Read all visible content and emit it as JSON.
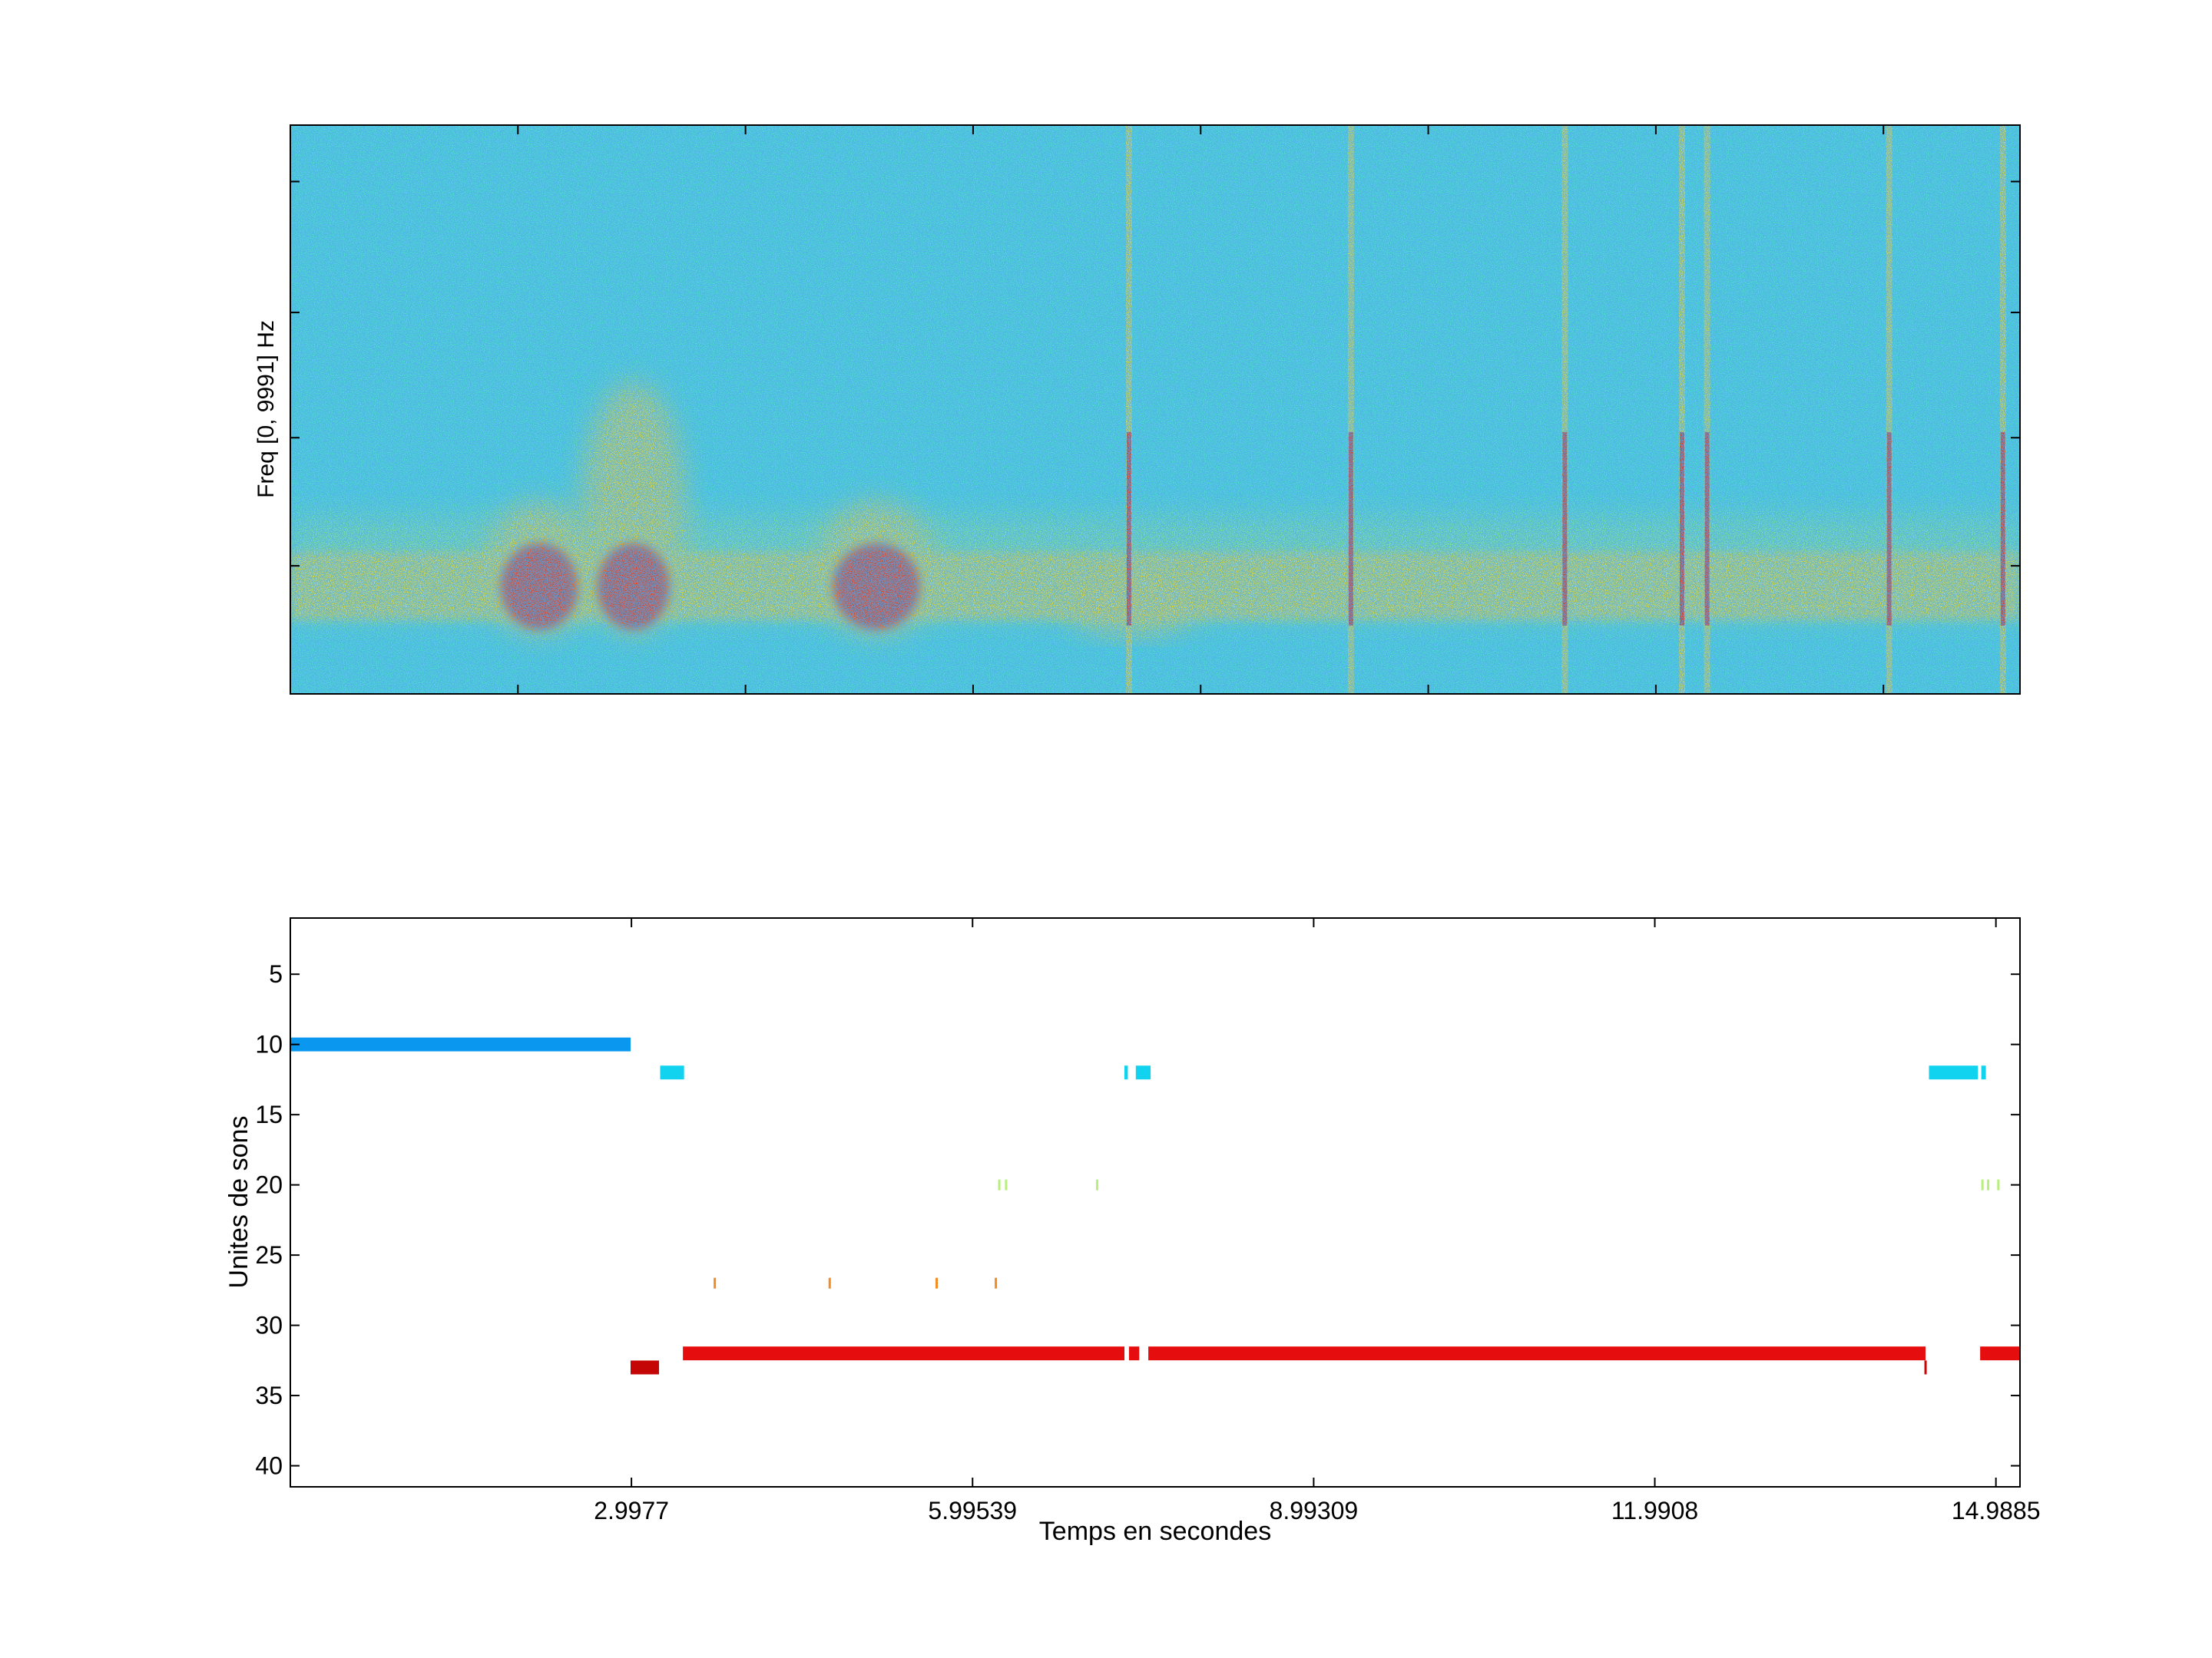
{
  "colors": {
    "background": "#ffffff",
    "axis": "#000000",
    "spec_base": "#4fe3c8",
    "spec_noise": "#2a8fe0",
    "spec_warm": "#f6e12a",
    "spec_hot": "#e51a0a",
    "unit_10": "#0a97f0",
    "unit_12": "#12d3ef",
    "unit_20": "#b8ef7c",
    "unit_27": "#f48b22",
    "unit_32": "#e50d0d",
    "unit_33": "#c40606"
  },
  "chart_data": [
    {
      "type": "heatmap",
      "title": "",
      "ylabel": "Freq [0, 9991] Hz",
      "xlabel": "",
      "xlim": [
        0,
        15.2
      ],
      "ylim": [
        0,
        9991
      ],
      "x_ticks": [
        2.0,
        4.0,
        6.0,
        8.0,
        10.0,
        12.0,
        14.0
      ],
      "y_ticks": [
        2250,
        4500,
        6700,
        9000
      ],
      "show_tick_labels": false,
      "grid": false,
      "colormap": "jet",
      "background_level": "cyan",
      "low_band_hz": [
        1300,
        2600
      ],
      "broadband_energy": [
        {
          "start": 1.78,
          "end": 2.6,
          "level": "red",
          "top_hz": 3100
        },
        {
          "start": 2.63,
          "end": 3.4,
          "level": "red",
          "top_hz": 5200
        },
        {
          "start": 4.7,
          "end": 5.6,
          "level": "red",
          "top_hz": 3100
        },
        {
          "start": 6.9,
          "end": 7.9,
          "level": "yellow",
          "top_hz": 1800
        }
      ],
      "vertical_clicks": [
        7.37,
        9.32,
        11.2,
        12.23,
        12.45,
        14.05,
        15.05
      ]
    },
    {
      "type": "scatter",
      "title": "",
      "xlabel": "Temps en secondes",
      "ylabel": "Unites de sons",
      "xlim": [
        0,
        15.2
      ],
      "ylim": [
        41.5,
        1
      ],
      "x_tick_labels": [
        "2.9977",
        "5.99539",
        "8.99309",
        "11.9908",
        "14.9885"
      ],
      "x_ticks": [
        2.9977,
        5.99539,
        8.99309,
        11.9908,
        14.9885
      ],
      "y_tick_labels": [
        "5",
        "10",
        "15",
        "20",
        "25",
        "30",
        "35",
        "40"
      ],
      "y_ticks": [
        5,
        10,
        15,
        20,
        25,
        30,
        35,
        40
      ],
      "grid": false,
      "series": [
        {
          "unit": 10,
          "color": "#0a97f0",
          "segments": [
            [
              0,
              2.99
            ]
          ]
        },
        {
          "unit": 12,
          "color": "#12d3ef",
          "segments": [
            [
              3.25,
              3.46
            ],
            [
              7.33,
              7.36
            ],
            [
              7.43,
              7.56
            ],
            [
              14.4,
              14.83
            ],
            [
              14.86,
              14.9
            ]
          ]
        },
        {
          "unit": 20,
          "color": "#b8ef7c",
          "segments": [
            [
              6.22,
              6.23
            ],
            [
              6.28,
              6.29
            ],
            [
              7.08,
              7.09
            ],
            [
              14.86,
              14.87
            ],
            [
              14.91,
              14.92
            ],
            [
              15.0,
              15.01
            ]
          ]
        },
        {
          "unit": 27,
          "color": "#f48b22",
          "segments": [
            [
              3.72,
              3.74
            ],
            [
              4.73,
              4.75
            ],
            [
              5.67,
              5.69
            ],
            [
              6.19,
              6.21
            ]
          ]
        },
        {
          "unit": 32,
          "color": "#e50d0d",
          "segments": [
            [
              3.45,
              7.33
            ],
            [
              7.37,
              7.46
            ],
            [
              7.54,
              14.37
            ],
            [
              14.85,
              15.2
            ]
          ]
        },
        {
          "unit": 33,
          "color": "#c40606",
          "segments": [
            [
              2.99,
              3.24
            ],
            [
              14.36,
              14.37
            ]
          ]
        }
      ]
    }
  ]
}
